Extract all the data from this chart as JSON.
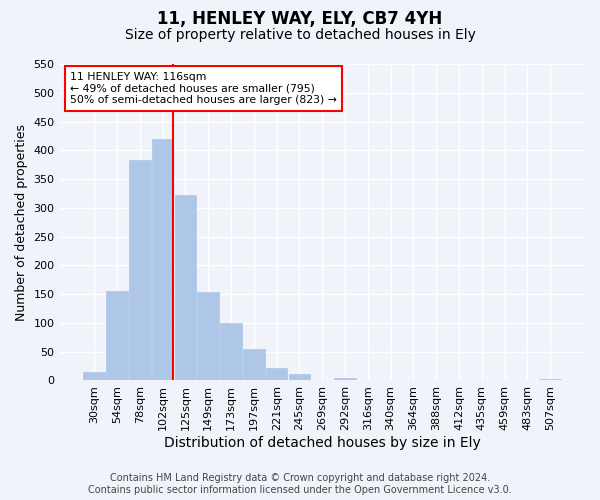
{
  "title": "11, HENLEY WAY, ELY, CB7 4YH",
  "subtitle": "Size of property relative to detached houses in Ely",
  "xlabel": "Distribution of detached houses by size in Ely",
  "ylabel": "Number of detached properties",
  "bar_labels": [
    "30sqm",
    "54sqm",
    "78sqm",
    "102sqm",
    "125sqm",
    "149sqm",
    "173sqm",
    "197sqm",
    "221sqm",
    "245sqm",
    "269sqm",
    "292sqm",
    "316sqm",
    "340sqm",
    "364sqm",
    "388sqm",
    "412sqm",
    "435sqm",
    "459sqm",
    "483sqm",
    "507sqm"
  ],
  "bar_values": [
    15,
    155,
    383,
    420,
    323,
    153,
    100,
    54,
    22,
    12,
    0,
    5,
    0,
    0,
    0,
    1,
    0,
    0,
    0,
    0,
    2
  ],
  "bar_color": "#aec6e8",
  "bar_edge_color": "#aec6e8",
  "property_line_bin": 3,
  "property_line_color": "red",
  "annotation_line1": "11 HENLEY WAY: 116sqm",
  "annotation_line2": "← 49% of detached houses are smaller (795)",
  "annotation_line3": "50% of semi-detached houses are larger (823) →",
  "annotation_box_color": "white",
  "annotation_box_edge_color": "red",
  "ylim": [
    0,
    550
  ],
  "yticks": [
    0,
    50,
    100,
    150,
    200,
    250,
    300,
    350,
    400,
    450,
    500,
    550
  ],
  "footer_text": "Contains HM Land Registry data © Crown copyright and database right 2024.\nContains public sector information licensed under the Open Government Licence v3.0.",
  "background_color": "#f0f4fa",
  "grid_color": "white",
  "title_fontsize": 12,
  "subtitle_fontsize": 10,
  "xlabel_fontsize": 10,
  "ylabel_fontsize": 9,
  "tick_fontsize": 8,
  "footer_fontsize": 7
}
